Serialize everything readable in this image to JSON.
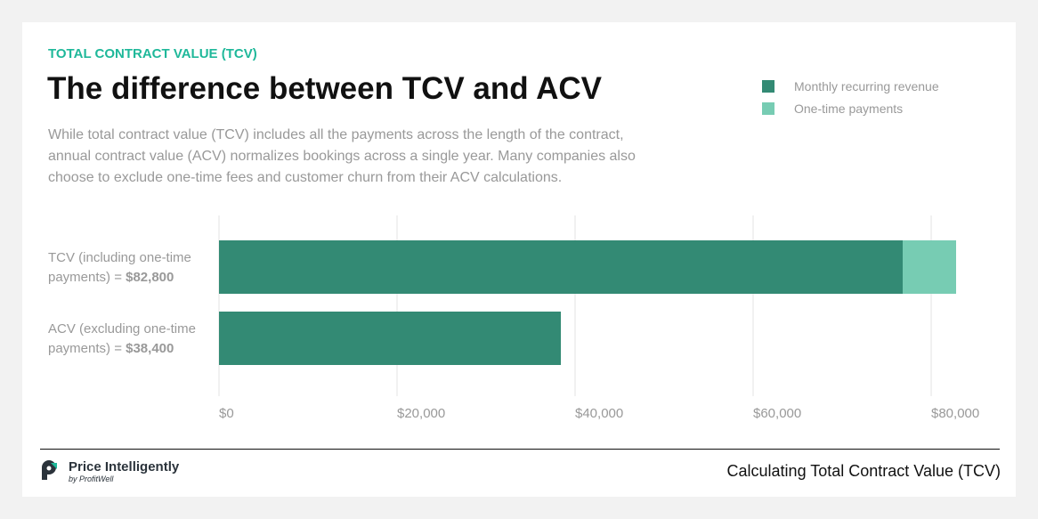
{
  "header": {
    "kicker": "TOTAL CONTRACT VALUE (TCV)",
    "title": "The difference between TCV and ACV",
    "description": "While total contract value (TCV) includes all the payments across the length of the contract, annual contract value (ACV) normalizes bookings across a single year. Many companies also choose to exclude one-time fees and customer churn from their ACV calculations."
  },
  "chart_data": {
    "type": "bar",
    "orientation": "horizontal",
    "stacked": true,
    "categories": [
      {
        "label": "TCV (including one-time payments) = ",
        "value_label": "$82,800"
      },
      {
        "label": "ACV (excluding one-time payments) = ",
        "value_label": "$38,400"
      }
    ],
    "series": [
      {
        "name": "Monthly recurring revenue",
        "color": "#338a74",
        "values": [
          76800,
          38400
        ]
      },
      {
        "name": "One-time payments",
        "color": "#77ccb3",
        "values": [
          6000,
          0
        ]
      }
    ],
    "xlim": [
      0,
      80000
    ],
    "xticks": [
      "$0",
      "$20,000",
      "$40,000",
      "$60,000",
      "$80,000"
    ],
    "grid": true,
    "legend": "top-right"
  },
  "footer": {
    "brand": "Price Intelligently",
    "brand_sub": "by ProfitWell",
    "caption": "Calculating Total Contract Value (TCV)"
  }
}
